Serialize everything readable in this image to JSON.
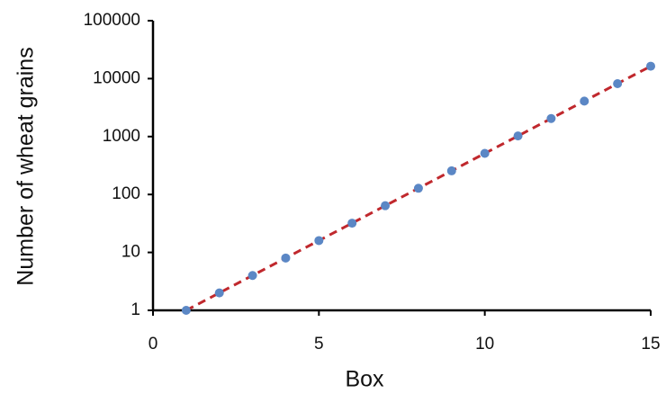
{
  "chart_data": {
    "type": "scatter",
    "x_label": "Box",
    "y_label": "Number of wheat grains",
    "series": [
      {
        "color": "#5b87c5",
        "x": [
          1,
          2,
          3,
          4,
          5,
          6,
          7,
          8,
          9,
          10,
          11,
          12,
          13,
          14,
          15
        ],
        "values": [
          1,
          2,
          4,
          8,
          16,
          32,
          64,
          128,
          256,
          512,
          1024,
          2048,
          4096,
          8192,
          16384
        ]
      }
    ],
    "trendline": {
      "color": "#c0282d",
      "dashed": true
    },
    "xlim": [
      0,
      15
    ],
    "xticks": [
      0,
      5,
      10,
      15
    ],
    "ylim": [
      1,
      100000
    ],
    "yticks": [
      1,
      10,
      100,
      1000,
      10000,
      100000
    ],
    "log_y": true
  }
}
